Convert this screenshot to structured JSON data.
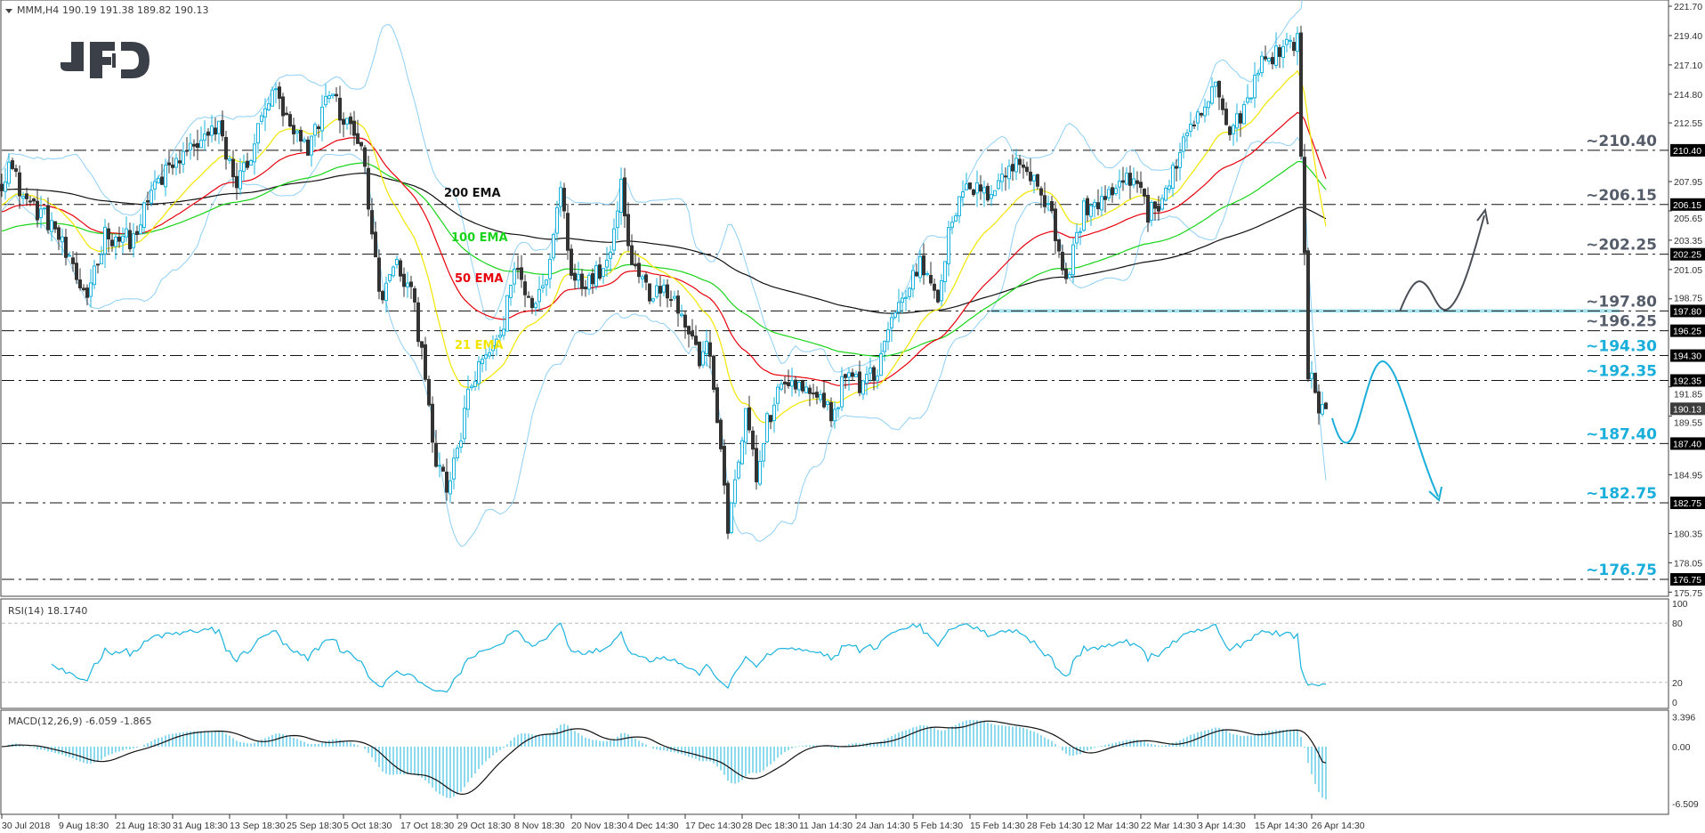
{
  "header": {
    "symbol": "MMM,H4",
    "ohlc": "190.19 191.38 189.82 190.13"
  },
  "logo": "JFD",
  "colors": {
    "up": "#1bb3de",
    "down": "#333333",
    "bb": "#8fd0f5",
    "ema21": "#f2e600",
    "ema50": "#e8000b",
    "ema100": "#19d419",
    "ema200": "#111111",
    "level_gray": "#565d6a",
    "level_blue": "#1aaedb",
    "band": "#a8e4f0",
    "scenario_up": "#4a4f57",
    "scenario_down": "#1aaedb"
  },
  "ema_labels": [
    {
      "text": "200 EMA",
      "color": "#111111"
    },
    {
      "text": "100 EMA",
      "color": "#19d419"
    },
    {
      "text": "50 EMA",
      "color": "#e8000b"
    },
    {
      "text": "21 EMA",
      "color": "#f2e600"
    }
  ],
  "chart_data": [
    {
      "type": "candlestick",
      "title": "MMM,H4 190.19 191.38 189.82 190.13",
      "ylim": [
        175.75,
        221.7
      ],
      "y_ticks": [
        "221.70",
        "219.40",
        "217.10",
        "214.80",
        "212.55",
        "207.95",
        "205.65",
        "203.35",
        "201.05",
        "198.75",
        "191.85",
        "189.55",
        "184.95",
        "180.35",
        "178.05",
        "175.75"
      ],
      "x_ticks": [
        "30 Jul 2018",
        "9 Aug 18:30",
        "21 Aug 18:30",
        "31 Aug 18:30",
        "13 Sep 18:30",
        "25 Sep 18:30",
        "5 Oct 18:30",
        "17 Oct 18:30",
        "29 Oct 18:30",
        "8 Nov 18:30",
        "20 Nov 18:30",
        "4 Dec 14:30",
        "17 Dec 14:30",
        "28 Dec 18:30",
        "11 Jan 14:30",
        "24 Jan 14:30",
        "5 Feb 14:30",
        "15 Feb 14:30",
        "28 Feb 14:30",
        "12 Mar 14:30",
        "22 Mar 14:30",
        "3 Apr 14:30",
        "15 Apr 14:30",
        "26 Apr 14:30"
      ],
      "bars_per_x_tick": 16,
      "total_bars": 373,
      "close_keypoints": [
        [
          0,
          208
        ],
        [
          2,
          209.4
        ],
        [
          6,
          206.8
        ],
        [
          15,
          204.3
        ],
        [
          21,
          200
        ],
        [
          24,
          199.2
        ],
        [
          29,
          203.8
        ],
        [
          37,
          203.4
        ],
        [
          43,
          207.7
        ],
        [
          49,
          209.4
        ],
        [
          55,
          211.1
        ],
        [
          61,
          212
        ],
        [
          66,
          207.7
        ],
        [
          70,
          210.2
        ],
        [
          76,
          215.3
        ],
        [
          81,
          212
        ],
        [
          86,
          210.2
        ],
        [
          92,
          215.3
        ],
        [
          96,
          212.8
        ],
        [
          101,
          211.1
        ],
        [
          104,
          203.4
        ],
        [
          107,
          198.3
        ],
        [
          110,
          201.7
        ],
        [
          115,
          199.2
        ],
        [
          119,
          193.2
        ],
        [
          122,
          185.6
        ],
        [
          125,
          183.9
        ],
        [
          128,
          186.4
        ],
        [
          131,
          191.5
        ],
        [
          136,
          194.1
        ],
        [
          141,
          196.6
        ],
        [
          144,
          201.7
        ],
        [
          148,
          198.3
        ],
        [
          153,
          200
        ],
        [
          157,
          207.7
        ],
        [
          160,
          200.9
        ],
        [
          165,
          200
        ],
        [
          170,
          201.7
        ],
        [
          174,
          207.7
        ],
        [
          177,
          201.7
        ],
        [
          182,
          199.2
        ],
        [
          186,
          200
        ],
        [
          191,
          197.5
        ],
        [
          196,
          194.1
        ],
        [
          199,
          194.9
        ],
        [
          202,
          186.4
        ],
        [
          204,
          180.5
        ],
        [
          206,
          184.7
        ],
        [
          209,
          189.8
        ],
        [
          212,
          184.7
        ],
        [
          215,
          189
        ],
        [
          220,
          192.4
        ],
        [
          225,
          191.5
        ],
        [
          229,
          190.7
        ],
        [
          234,
          189.8
        ],
        [
          237,
          193.2
        ],
        [
          241,
          191.9
        ],
        [
          246,
          193.2
        ],
        [
          249,
          196.6
        ],
        [
          254,
          199.2
        ],
        [
          258,
          201.7
        ],
        [
          263,
          199.2
        ],
        [
          267,
          205.1
        ],
        [
          272,
          207.7
        ],
        [
          276,
          206.8
        ],
        [
          281,
          208.5
        ],
        [
          286,
          209.4
        ],
        [
          290,
          208.5
        ],
        [
          295,
          205.1
        ],
        [
          299,
          200
        ],
        [
          304,
          205.9
        ],
        [
          309,
          206.4
        ],
        [
          315,
          207.7
        ],
        [
          319,
          208.5
        ],
        [
          322,
          205.1
        ],
        [
          327,
          207.2
        ],
        [
          331,
          210.2
        ],
        [
          336,
          212.8
        ],
        [
          341,
          215.3
        ],
        [
          345,
          211.5
        ],
        [
          350,
          214.5
        ],
        [
          354,
          217.5
        ],
        [
          359,
          218.3
        ],
        [
          364,
          219.1
        ],
        [
          367,
          193.2
        ],
        [
          370,
          190.2
        ],
        [
          372,
          190.13
        ]
      ],
      "indicators_on_price": [
        "EMA 21",
        "EMA 50",
        "EMA 100",
        "EMA 200",
        "Bollinger Bands(20,2)"
      ],
      "ema_seed": {
        "ema21": 206,
        "ema50": 205.5,
        "ema100": 204,
        "ema200": 207.3
      },
      "levels": [
        {
          "label": "~210.40",
          "tag": "210.40",
          "value": 210.4,
          "style": "gray"
        },
        {
          "label": "~206.15",
          "tag": "206.15",
          "value": 206.15,
          "style": "gray"
        },
        {
          "label": "~202.25",
          "tag": "202.25",
          "value": 202.25,
          "style": "gray"
        },
        {
          "label": "~197.80",
          "tag": "197.80",
          "value": 197.8,
          "style": "gray"
        },
        {
          "label": "~196.25",
          "tag": "196.25",
          "value": 196.25,
          "style": "gray"
        },
        {
          "label": "~194.30",
          "tag": "194.30",
          "value": 194.3,
          "style": "blue"
        },
        {
          "label": "~192.35",
          "tag": "192.35",
          "value": 192.35,
          "style": "blue"
        },
        {
          "label": "~187.40",
          "tag": "187.40",
          "value": 187.4,
          "style": "blue"
        },
        {
          "label": "~182.75",
          "tag": "182.75",
          "value": 182.75,
          "style": "blue"
        },
        {
          "label": "~176.75",
          "tag": "176.75",
          "value": 176.75,
          "style": "blue"
        }
      ],
      "current_price": {
        "value": 190.13,
        "tag": "190.13"
      },
      "support_band": {
        "value": 197.8,
        "from_bar": 278
      }
    },
    {
      "type": "line",
      "title": "RSI(14) 18.1740",
      "ylim": [
        0,
        100
      ],
      "y_ticks": [
        "100",
        "80",
        "20",
        "0"
      ],
      "levels": [
        80,
        20
      ],
      "last_value": 18.174
    },
    {
      "type": "bar",
      "title": "MACD(12,26,9) -6.059 -1.865",
      "ylim": [
        -6.509,
        3.396
      ],
      "y_ticks": [
        "3.396",
        "0.00",
        "-6.509"
      ],
      "last_main": -6.059,
      "last_signal": -1.865
    }
  ]
}
